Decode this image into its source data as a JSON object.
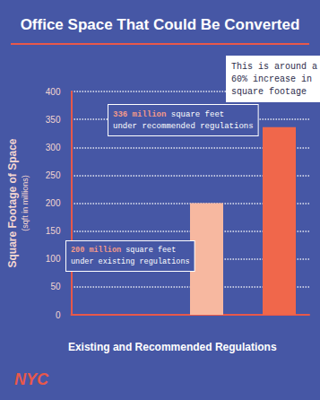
{
  "chart_data": {
    "type": "bar",
    "title": "Office Space That Could Be Converted",
    "ylabel": "Square Footage of Space",
    "ylabel_note": "(sqft in millions)",
    "xlabel": "Existing and Recommended Regulations",
    "categories": [
      null,
      null
    ],
    "values": [
      200,
      336
    ],
    "colors": [
      "#f7b8a0",
      "#f0674b"
    ],
    "ylim": [
      0,
      400
    ],
    "yticks": [
      0,
      50,
      100,
      150,
      200,
      250,
      300,
      350,
      400
    ],
    "grid": true,
    "annotations": [
      {
        "lines": [
          "This is around a",
          "60% increase in",
          "square footage"
        ]
      },
      {
        "lines": [
          "336 million square feet",
          "under recommended regulations"
        ],
        "highlight": "336 million"
      },
      {
        "lines": [
          "200 million square feet",
          "under existing regulations"
        ],
        "highlight": "200 million"
      }
    ],
    "logo": "NYC"
  }
}
